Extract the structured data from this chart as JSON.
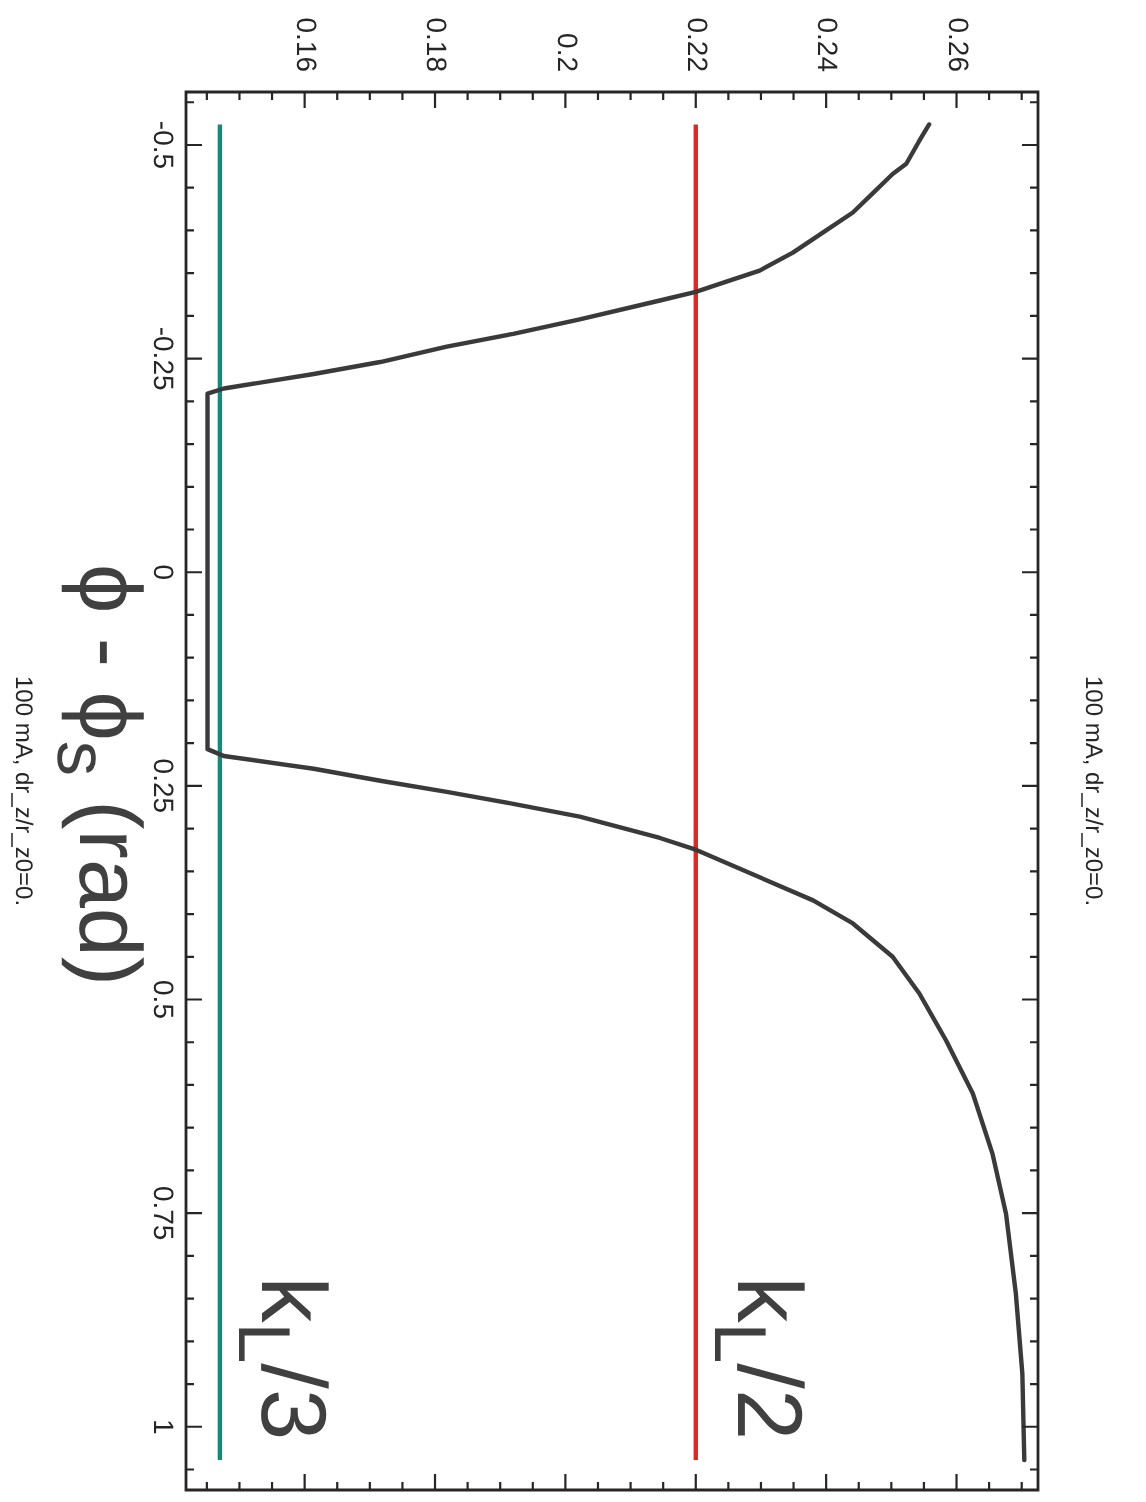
{
  "chart_data": {
    "type": "line",
    "title": "100 mA, dr_z/r_z0=0.",
    "ylabel": "ϕ - ϕ$_{s}$ (rad)",
    "annotations": [
      "100 mA, dr_z/r_z0=0."
    ],
    "x": [
      0.2558,
      0.2543,
      0.2523,
      0.2502,
      0.2471,
      0.2441,
      0.24,
      0.2349,
      0.2298,
      0.2247,
      0.22,
      0.2145,
      0.2022,
      0.192,
      0.1818,
      0.1716,
      0.1614,
      0.1476,
      0.1451,
      0.1451,
      0.1476,
      0.1614,
      0.1716,
      0.1818,
      0.192,
      0.2022,
      0.2145,
      0.2201,
      0.2298,
      0.238,
      0.2441,
      0.2502,
      0.2543,
      0.2584,
      0.2625,
      0.2655,
      0.2676,
      0.2691,
      0.2701,
      0.2704
    ],
    "values": [
      -0.524,
      -0.505,
      -0.478,
      -0.466,
      -0.443,
      -0.421,
      -0.4,
      -0.374,
      -0.353,
      -0.34,
      -0.328,
      -0.318,
      -0.296,
      -0.279,
      -0.264,
      -0.246,
      -0.232,
      -0.215,
      -0.209,
      0.207,
      0.215,
      0.23,
      0.244,
      0.257,
      0.271,
      0.286,
      0.311,
      0.325,
      0.357,
      0.384,
      0.411,
      0.45,
      0.493,
      0.548,
      0.61,
      0.68,
      0.751,
      0.844,
      0.938,
      1.039
    ],
    "color": "#3a3a3a",
    "xlim": [
      0.1418,
      0.2725
    ],
    "ylim": [
      1.074,
      -0.562
    ],
    "xticks": [
      {
        "value": 0.145,
        "label": null
      },
      {
        "value": 0.15,
        "label": null
      },
      {
        "value": 0.155,
        "label": null
      },
      0.16,
      {
        "value": 0.165,
        "label": null
      },
      {
        "value": 0.17,
        "label": null
      },
      {
        "value": 0.175,
        "label": null
      },
      0.18,
      {
        "value": 0.185,
        "label": null
      },
      {
        "value": 0.19,
        "label": null
      },
      {
        "value": 0.195,
        "label": null
      },
      0.2,
      {
        "value": 0.205,
        "label": null
      },
      {
        "value": 0.21,
        "label": null
      },
      {
        "value": 0.215,
        "label": null
      },
      0.22,
      {
        "value": 0.225,
        "label": null
      },
      {
        "value": 0.23,
        "label": null
      },
      {
        "value": 0.235,
        "label": null
      },
      0.24,
      {
        "value": 0.245,
        "label": null
      },
      {
        "value": 0.25,
        "label": null
      },
      {
        "value": 0.255,
        "label": null
      },
      0.26,
      {
        "value": 0.265,
        "label": null
      },
      {
        "value": 0.27,
        "label": null
      }
    ],
    "yticks": [
      {
        "value": -0.55,
        "label": null
      },
      -0.5,
      {
        "value": -0.45,
        "label": null
      },
      {
        "value": -0.4,
        "label": null
      },
      {
        "value": -0.35,
        "label": null
      },
      {
        "value": -0.3,
        "label": null
      },
      -0.25,
      {
        "value": -0.2,
        "label": null
      },
      {
        "value": -0.15,
        "label": null
      },
      {
        "value": -0.1,
        "label": null
      },
      {
        "value": -0.05,
        "label": null
      },
      0,
      {
        "value": 0.05,
        "label": null
      },
      {
        "value": 0.1,
        "label": null
      },
      {
        "value": 0.15,
        "label": null
      },
      {
        "value": 0.2,
        "label": null
      },
      0.25,
      {
        "value": 0.3,
        "label": null
      },
      {
        "value": 0.35,
        "label": null
      },
      {
        "value": 0.4,
        "label": null
      },
      {
        "value": 0.45,
        "label": null
      },
      0.5,
      {
        "value": 0.55,
        "label": null
      },
      {
        "value": 0.6,
        "label": null
      },
      {
        "value": 0.65,
        "label": null
      },
      {
        "value": 0.7,
        "label": null
      },
      0.75,
      {
        "value": 0.8,
        "label": null
      },
      {
        "value": 0.85,
        "label": null
      },
      {
        "value": 0.9,
        "label": null
      },
      {
        "value": 0.95,
        "label": null
      },
      1,
      {
        "value": 1.05,
        "label": null
      }
    ],
    "ref_lines": [
      {
        "axis": "x",
        "value": 0.22,
        "label": "k$_{L}$/2",
        "color": "#e3261f"
      },
      {
        "axis": "x",
        "value": 0.147,
        "label": "k$_{L}$/3",
        "color": "#138a7c"
      }
    ]
  }
}
